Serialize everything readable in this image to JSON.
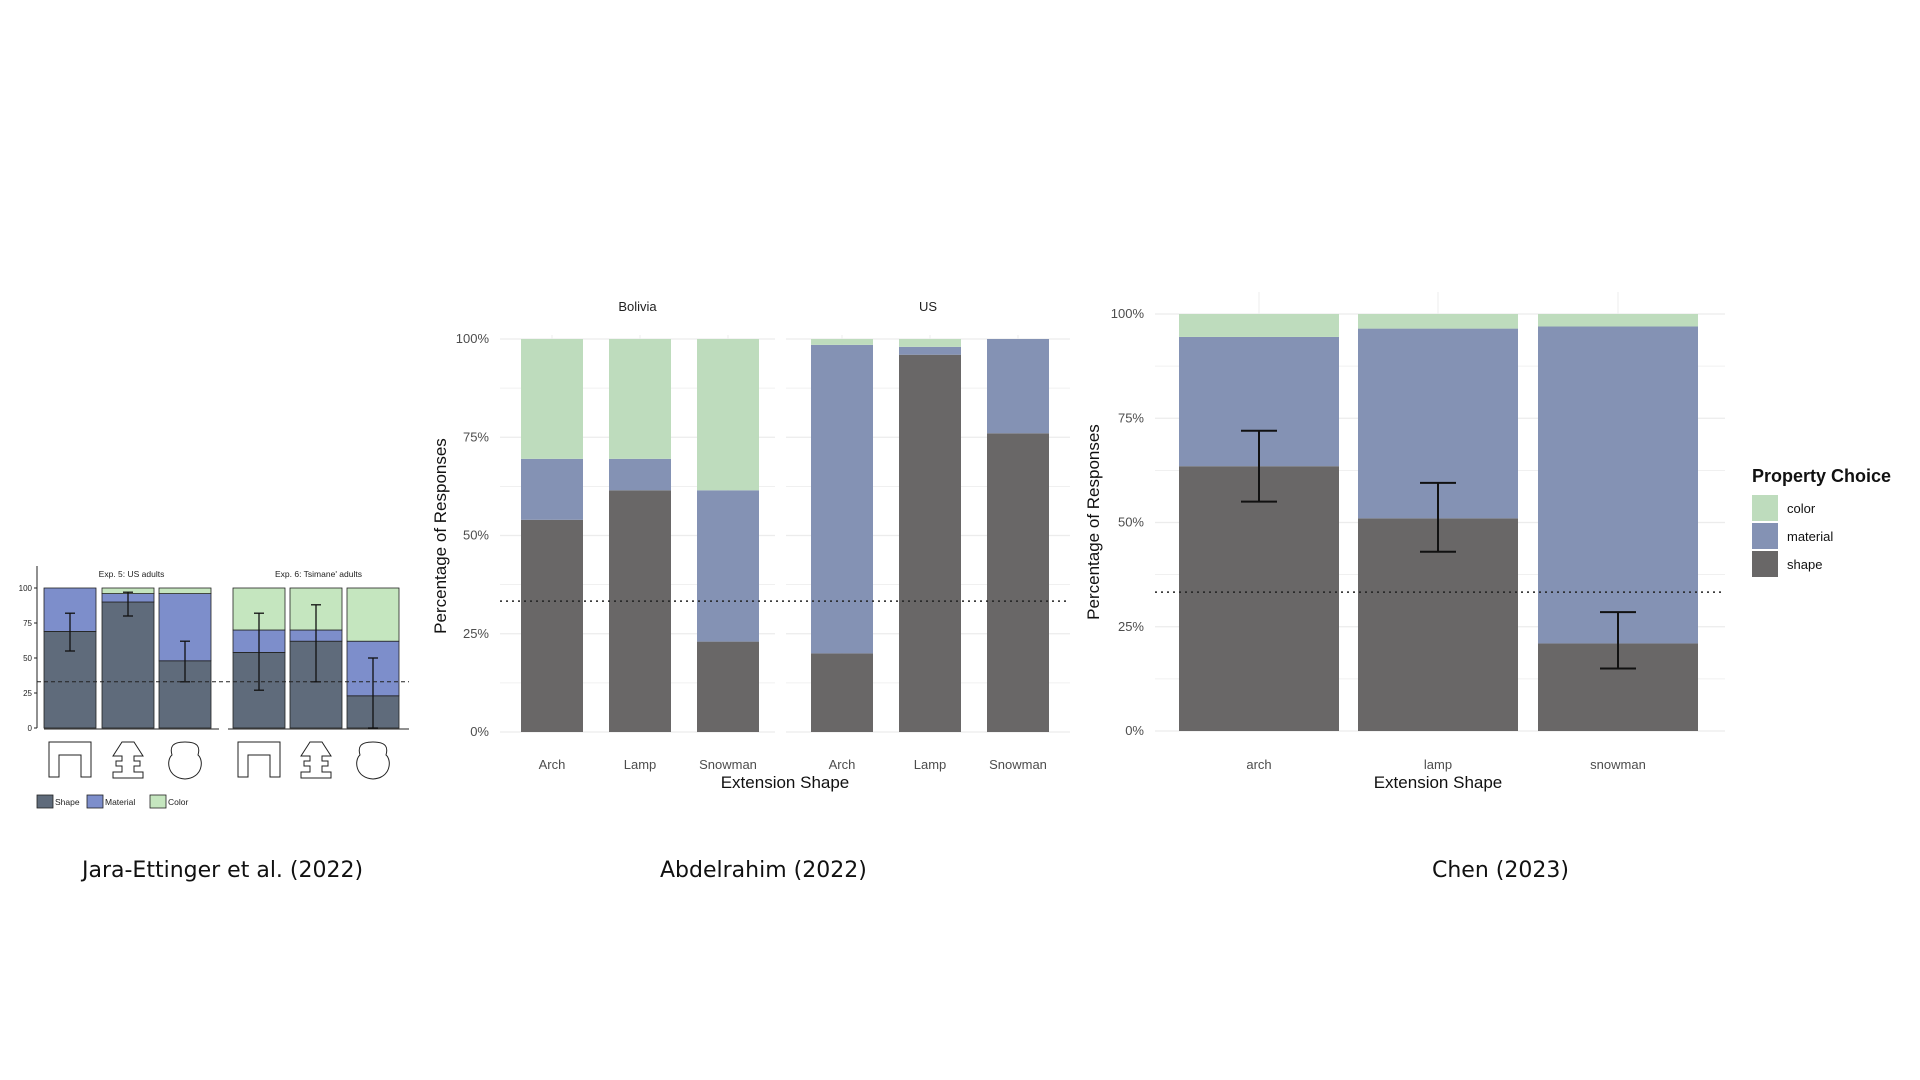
{
  "colors": {
    "j_shape": "#5f6b7b",
    "j_material": "#7d8ecb",
    "j_color": "#c5e6bf",
    "shape": "#696767",
    "material": "#8492b4",
    "color": "#bedcbd",
    "grid": "#ececec",
    "text": "#4d4d4d",
    "dark": "#111111"
  },
  "captions": {
    "jara": "Jara-Ettinger et al. (2022)",
    "abdelrahim": "Abdelrahim (2022)",
    "chen": "Chen (2023)"
  },
  "chart_data": [
    {
      "id": "jara",
      "type": "bar",
      "stacked": true,
      "panels": [
        {
          "title": "Exp. 5: US adults",
          "categories": [
            "arch-icon",
            "lamp-icon",
            "snowman-icon"
          ],
          "series": [
            {
              "name": "Shape",
              "values": [
                69,
                90,
                48
              ]
            },
            {
              "name": "Material",
              "values": [
                31,
                6,
                48
              ]
            },
            {
              "name": "Color",
              "values": [
                0,
                4,
                4
              ]
            }
          ],
          "error_bars": [
            [
              55,
              82
            ],
            [
              80,
              97
            ],
            [
              33,
              62
            ]
          ]
        },
        {
          "title": "Exp. 6: Tsimane' adults",
          "categories": [
            "arch-icon",
            "lamp-icon",
            "snowman-icon"
          ],
          "series": [
            {
              "name": "Shape",
              "values": [
                54,
                62,
                23
              ]
            },
            {
              "name": "Material",
              "values": [
                16,
                8,
                39
              ]
            },
            {
              "name": "Color",
              "values": [
                30,
                30,
                38
              ]
            }
          ],
          "error_bars": [
            [
              27,
              82
            ],
            [
              33,
              88
            ],
            [
              0,
              50
            ]
          ]
        }
      ],
      "yticks": [
        "0",
        "25",
        "50",
        "75",
        "100"
      ],
      "ylim": [
        0,
        100
      ],
      "reference_line": 33,
      "legend": [
        "Shape",
        "Material",
        "Color"
      ]
    },
    {
      "id": "abdelrahim",
      "type": "bar",
      "stacked": true,
      "panels": [
        {
          "title": "Bolivia",
          "categories": [
            "Arch",
            "Lamp",
            "Snowman"
          ],
          "series": [
            {
              "name": "shape",
              "values": [
                54,
                61.5,
                23
              ]
            },
            {
              "name": "material",
              "values": [
                15.5,
                8,
                38.5
              ]
            },
            {
              "name": "color",
              "values": [
                30.5,
                30.5,
                38.5
              ]
            }
          ]
        },
        {
          "title": "US",
          "categories": [
            "Arch",
            "Lamp",
            "Snowman"
          ],
          "series": [
            {
              "name": "shape",
              "values": [
                20,
                96,
                76
              ]
            },
            {
              "name": "material",
              "values": [
                78.5,
                2,
                24
              ]
            },
            {
              "name": "color",
              "values": [
                1.5,
                2,
                0
              ]
            }
          ]
        }
      ],
      "xlabel": "Extension Shape",
      "ylabel": "Percentage of Responses",
      "yticks": [
        "0%",
        "25%",
        "50%",
        "75%",
        "100%"
      ],
      "ylim": [
        0,
        100
      ],
      "reference_line": 33.3
    },
    {
      "id": "chen",
      "type": "bar",
      "stacked": true,
      "categories": [
        "arch",
        "lamp",
        "snowman"
      ],
      "series": [
        {
          "name": "shape",
          "values": [
            63.5,
            51,
            21
          ]
        },
        {
          "name": "material",
          "values": [
            31,
            45.5,
            76
          ]
        },
        {
          "name": "color",
          "values": [
            5.5,
            3.5,
            3
          ]
        }
      ],
      "error_bars": [
        [
          55,
          72
        ],
        [
          43,
          59.5
        ],
        [
          15,
          28.5
        ]
      ],
      "xlabel": "Extension Shape",
      "ylabel": "Percentage of Responses",
      "yticks": [
        "0%",
        "25%",
        "50%",
        "75%",
        "100%"
      ],
      "ylim": [
        0,
        100
      ],
      "reference_line": 33.3,
      "legend_title": "Property Choice",
      "legend": [
        "color",
        "material",
        "shape"
      ],
      "legend_position": "right"
    }
  ]
}
